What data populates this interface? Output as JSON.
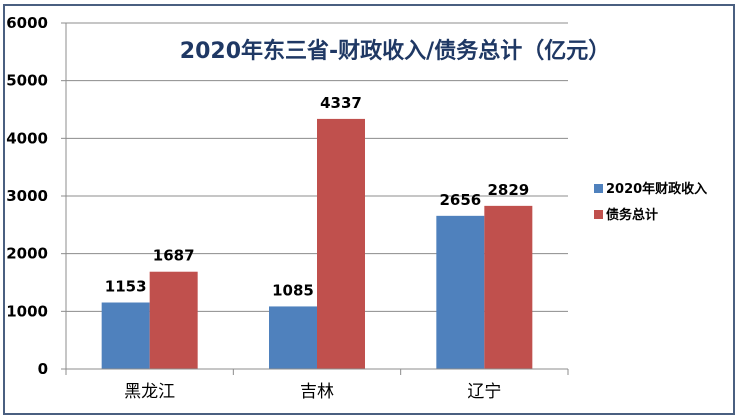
{
  "chart_data": {
    "type": "bar",
    "title": "2020年东三省-财政收入/债务总计（亿元）",
    "xlabel": "",
    "ylabel": "",
    "categories": [
      "黑龙江",
      "吉林",
      "辽宁"
    ],
    "series": [
      {
        "name": "2020年财政收入",
        "color": "#4f81bd",
        "values": [
          1153,
          1085,
          2656
        ]
      },
      {
        "name": "债务总计",
        "color": "#c0504d",
        "values": [
          1687,
          4337,
          2829
        ]
      }
    ],
    "ylim": [
      0,
      6000
    ],
    "yticks": [
      0,
      1000,
      2000,
      3000,
      4000,
      5000,
      6000
    ],
    "grid": true,
    "legend_position": "right",
    "data_labels": true
  },
  "colors": {
    "title": "#1f3864",
    "border": "#4a5f80",
    "grid": "#8c8c8c"
  }
}
